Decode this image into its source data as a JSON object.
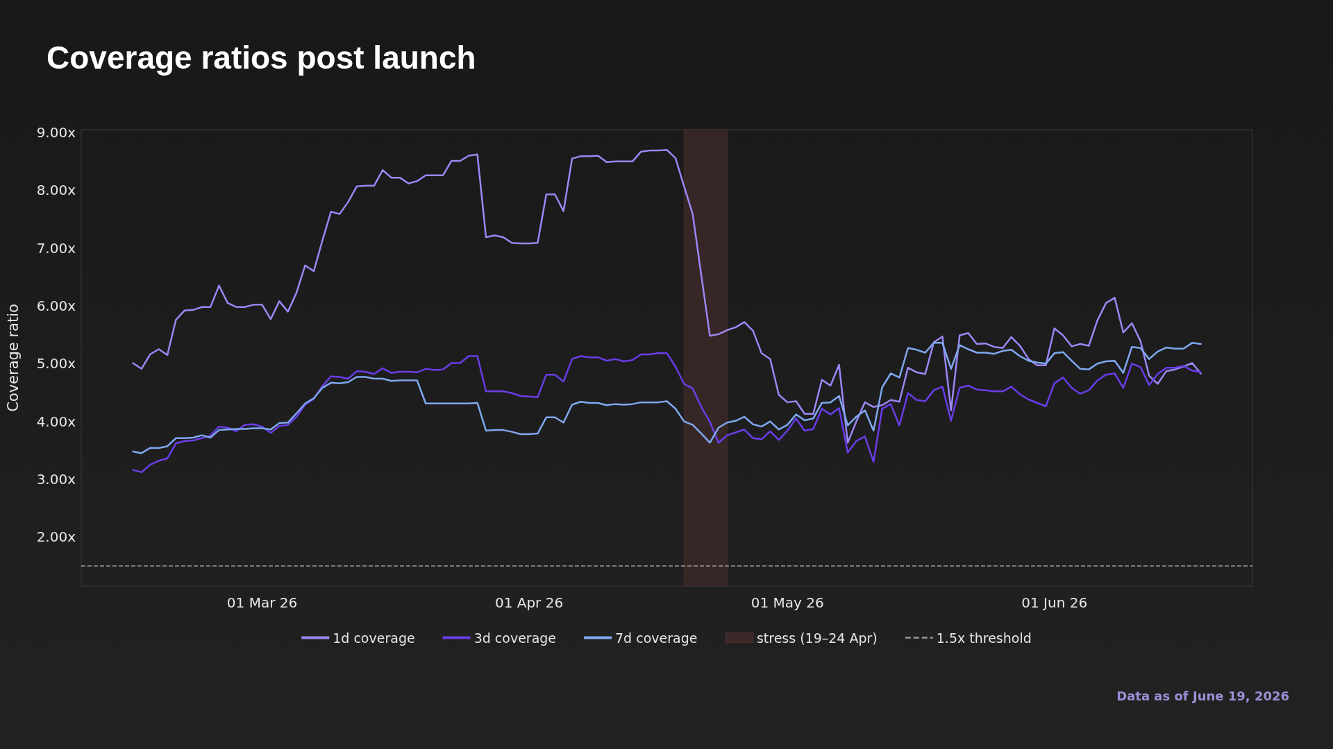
{
  "chart_data": {
    "type": "line",
    "title": "Coverage ratios post launch",
    "ylabel": "Coverage ratio",
    "x": [
      "2026-02-14",
      "2026-02-15",
      "2026-02-16",
      "2026-02-17",
      "2026-02-18",
      "2026-02-19",
      "2026-02-20",
      "2026-02-21",
      "2026-02-22",
      "2026-02-23",
      "2026-02-24",
      "2026-02-25",
      "2026-02-26",
      "2026-02-27",
      "2026-02-28",
      "2026-03-01",
      "2026-03-02",
      "2026-03-03",
      "2026-03-04",
      "2026-03-05",
      "2026-03-06",
      "2026-03-07",
      "2026-03-08",
      "2026-03-09",
      "2026-03-10",
      "2026-03-11",
      "2026-03-12",
      "2026-03-13",
      "2026-03-14",
      "2026-03-15",
      "2026-03-16",
      "2026-03-17",
      "2026-03-18",
      "2026-03-19",
      "2026-03-20",
      "2026-03-21",
      "2026-03-22",
      "2026-03-23",
      "2026-03-24",
      "2026-03-25",
      "2026-03-26",
      "2026-03-27",
      "2026-03-28",
      "2026-03-29",
      "2026-03-30",
      "2026-03-31",
      "2026-04-01",
      "2026-04-02",
      "2026-04-03",
      "2026-04-04",
      "2026-04-05",
      "2026-04-06",
      "2026-04-07",
      "2026-04-08",
      "2026-04-09",
      "2026-04-10",
      "2026-04-11",
      "2026-04-12",
      "2026-04-13",
      "2026-04-14",
      "2026-04-15",
      "2026-04-16",
      "2026-04-17",
      "2026-04-18",
      "2026-04-19",
      "2026-04-20",
      "2026-04-21",
      "2026-04-22",
      "2026-04-23",
      "2026-04-24",
      "2026-04-25",
      "2026-04-26",
      "2026-04-27",
      "2026-04-28",
      "2026-04-29",
      "2026-04-30",
      "2026-05-01",
      "2026-05-02",
      "2026-05-03",
      "2026-05-04",
      "2026-05-05",
      "2026-05-06",
      "2026-05-07",
      "2026-05-08",
      "2026-05-09",
      "2026-05-10",
      "2026-05-11",
      "2026-05-12",
      "2026-05-13",
      "2026-05-14",
      "2026-05-15",
      "2026-05-16",
      "2026-05-17",
      "2026-05-18",
      "2026-05-19",
      "2026-05-20",
      "2026-05-21",
      "2026-05-22",
      "2026-05-23",
      "2026-05-24",
      "2026-05-25",
      "2026-05-26",
      "2026-05-27",
      "2026-05-28",
      "2026-05-29",
      "2026-05-30",
      "2026-05-31",
      "2026-06-01",
      "2026-06-02",
      "2026-06-03",
      "2026-06-04",
      "2026-06-05",
      "2026-06-06",
      "2026-06-07",
      "2026-06-08",
      "2026-06-09",
      "2026-06-10",
      "2026-06-11",
      "2026-06-12",
      "2026-06-13",
      "2026-06-14",
      "2026-06-15",
      "2026-06-16",
      "2026-06-17",
      "2026-06-18"
    ],
    "series": [
      {
        "name": "1d coverage",
        "color": "#9b87f5",
        "values": [
          5.01,
          4.91,
          5.16,
          5.25,
          5.15,
          5.76,
          5.92,
          5.93,
          5.98,
          5.98,
          6.35,
          6.05,
          5.98,
          5.98,
          6.02,
          6.02,
          5.77,
          6.08,
          5.9,
          6.23,
          6.7,
          6.6,
          7.13,
          7.63,
          7.59,
          7.8,
          8.07,
          8.08,
          8.08,
          8.35,
          8.22,
          8.22,
          8.12,
          8.16,
          8.26,
          8.26,
          8.26,
          8.51,
          8.51,
          8.6,
          8.62,
          7.19,
          7.22,
          7.19,
          7.09,
          7.08,
          7.08,
          7.09,
          7.93,
          7.93,
          7.64,
          8.55,
          8.59,
          8.59,
          8.6,
          8.49,
          8.5,
          8.5,
          8.5,
          8.67,
          8.69,
          8.69,
          8.7,
          8.56,
          8.07,
          7.59,
          6.53,
          5.48,
          5.51,
          5.58,
          5.63,
          5.72,
          5.57,
          5.18,
          5.08,
          4.46,
          4.33,
          4.35,
          4.13,
          4.13,
          4.72,
          4.62,
          4.98,
          3.63,
          4.0,
          4.33,
          4.25,
          4.28,
          4.37,
          4.34,
          4.93,
          4.85,
          4.82,
          5.37,
          5.47,
          4.19,
          5.49,
          5.53,
          5.34,
          5.35,
          5.29,
          5.27,
          5.46,
          5.31,
          5.08,
          4.97,
          4.97,
          5.61,
          5.49,
          5.3,
          5.34,
          5.31,
          5.75,
          6.05,
          6.14,
          5.54,
          5.7,
          5.39,
          4.79,
          4.65,
          4.87,
          4.9,
          4.95,
          5.01,
          4.83
        ]
      },
      {
        "name": "3d coverage",
        "color": "#6a3de8",
        "values": [
          3.16,
          3.12,
          3.25,
          3.32,
          3.36,
          3.62,
          3.66,
          3.67,
          3.71,
          3.75,
          3.91,
          3.89,
          3.83,
          3.94,
          3.95,
          3.91,
          3.8,
          3.92,
          3.94,
          4.08,
          4.29,
          4.39,
          4.61,
          4.78,
          4.77,
          4.74,
          4.87,
          4.86,
          4.82,
          4.92,
          4.84,
          4.86,
          4.86,
          4.85,
          4.91,
          4.89,
          4.9,
          5.01,
          5.01,
          5.13,
          5.13,
          4.52,
          4.52,
          4.52,
          4.49,
          4.44,
          4.43,
          4.42,
          4.81,
          4.81,
          4.69,
          5.08,
          5.13,
          5.11,
          5.11,
          5.05,
          5.08,
          5.04,
          5.06,
          5.16,
          5.16,
          5.18,
          5.18,
          4.95,
          4.65,
          4.57,
          4.25,
          3.99,
          3.63,
          3.76,
          3.81,
          3.86,
          3.71,
          3.69,
          3.83,
          3.68,
          3.84,
          4.05,
          3.84,
          3.87,
          4.22,
          4.12,
          4.23,
          3.46,
          3.66,
          3.74,
          3.3,
          4.22,
          4.3,
          3.93,
          4.49,
          4.37,
          4.35,
          4.54,
          4.6,
          4.01,
          4.58,
          4.62,
          4.55,
          4.54,
          4.52,
          4.52,
          4.6,
          4.47,
          4.38,
          4.32,
          4.26,
          4.66,
          4.76,
          4.58,
          4.48,
          4.54,
          4.71,
          4.81,
          4.83,
          4.58,
          5.0,
          4.94,
          4.63,
          4.82,
          4.93,
          4.93,
          4.96,
          4.88,
          4.85
        ]
      },
      {
        "name": "7d coverage",
        "color": "#7fa8ef",
        "values": [
          3.48,
          3.45,
          3.54,
          3.54,
          3.57,
          3.71,
          3.71,
          3.72,
          3.76,
          3.72,
          3.85,
          3.86,
          3.87,
          3.87,
          3.88,
          3.88,
          3.86,
          3.97,
          3.98,
          4.14,
          4.31,
          4.4,
          4.58,
          4.67,
          4.66,
          4.68,
          4.77,
          4.77,
          4.74,
          4.74,
          4.7,
          4.71,
          4.71,
          4.71,
          4.31,
          4.31,
          4.31,
          4.31,
          4.31,
          4.31,
          4.32,
          3.84,
          3.85,
          3.85,
          3.82,
          3.78,
          3.78,
          3.79,
          4.07,
          4.07,
          3.98,
          4.29,
          4.34,
          4.32,
          4.32,
          4.28,
          4.3,
          4.29,
          4.3,
          4.33,
          4.33,
          4.33,
          4.35,
          4.22,
          4.0,
          3.94,
          3.79,
          3.63,
          3.89,
          3.98,
          4.01,
          4.08,
          3.95,
          3.91,
          4.0,
          3.86,
          3.94,
          4.12,
          4.02,
          4.05,
          4.32,
          4.33,
          4.44,
          3.93,
          4.08,
          4.19,
          3.84,
          4.59,
          4.83,
          4.76,
          5.27,
          5.24,
          5.19,
          5.36,
          5.36,
          4.91,
          5.32,
          5.25,
          5.19,
          5.19,
          5.17,
          5.22,
          5.24,
          5.13,
          5.05,
          5.02,
          5.0,
          5.18,
          5.2,
          5.05,
          4.91,
          4.9,
          5.0,
          5.04,
          5.05,
          4.84,
          5.29,
          5.27,
          5.08,
          5.21,
          5.28,
          5.26,
          5.26,
          5.36,
          5.34
        ]
      }
    ],
    "bands": [
      {
        "axis": "x",
        "from": "2026-04-19",
        "to": "2026-04-24",
        "label": "stress (19–24 Apr)",
        "color": "#3b2828"
      }
    ],
    "ref_lines": [
      {
        "axis": "y",
        "value": 1.5,
        "label": "1.5x threshold",
        "color": "#9a9a9a",
        "line_style": "dashed"
      }
    ],
    "xlim": [
      "2026-02-08",
      "2026-06-24"
    ],
    "xticks": [
      {
        "value": "2026-03-01",
        "label": "01 Mar 26"
      },
      {
        "value": "2026-04-01",
        "label": "01 Apr 26"
      },
      {
        "value": "2026-05-01",
        "label": "01 May 26"
      },
      {
        "value": "2026-06-01",
        "label": "01 Jun 26"
      }
    ],
    "ylim": [
      1.15,
      9.05
    ],
    "yticks": [
      {
        "value": 2,
        "label": "2.00x"
      },
      {
        "value": 3,
        "label": "3.00x"
      },
      {
        "value": 4,
        "label": "4.00x"
      },
      {
        "value": 5,
        "label": "5.00x"
      },
      {
        "value": 6,
        "label": "6.00x"
      },
      {
        "value": 7,
        "label": "7.00x"
      },
      {
        "value": 8,
        "label": "8.00x"
      },
      {
        "value": 9,
        "label": "9.00x"
      }
    ],
    "grid": false,
    "legend": "bottom",
    "marker": "none",
    "line_style": "solid",
    "annotations": [
      "Data as of June 19, 2026"
    ]
  }
}
